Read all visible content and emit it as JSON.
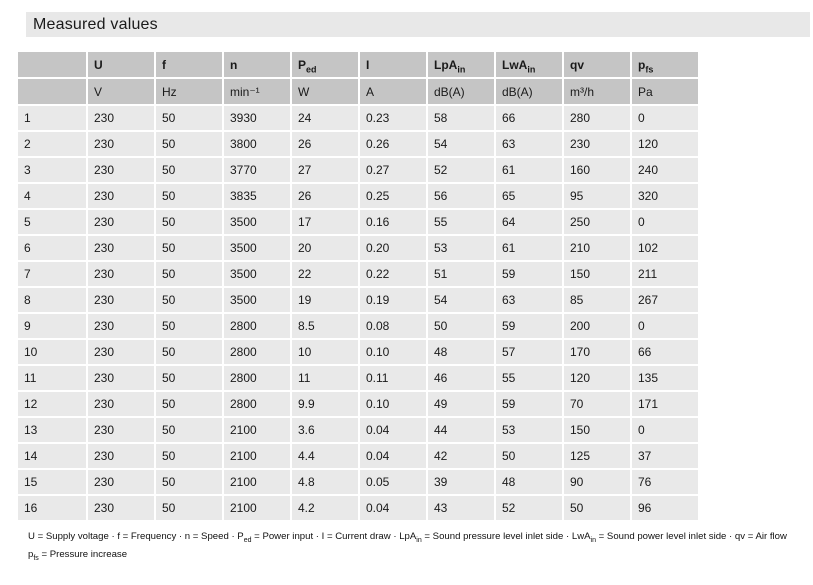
{
  "title": "Measured values",
  "table": {
    "columns": [
      {
        "label": "",
        "sub": "",
        "unit": ""
      },
      {
        "label": "U",
        "sub": "",
        "unit": "V"
      },
      {
        "label": "f",
        "sub": "",
        "unit": "Hz"
      },
      {
        "label": "n",
        "sub": "",
        "unit": "min⁻¹"
      },
      {
        "label": "P",
        "sub": "ed",
        "unit": "W"
      },
      {
        "label": "I",
        "sub": "",
        "unit": "A"
      },
      {
        "label": "LpA",
        "sub": "in",
        "unit": "dB(A)"
      },
      {
        "label": "LwA",
        "sub": "in",
        "unit": "dB(A)"
      },
      {
        "label": "qv",
        "sub": "",
        "unit": "m³/h"
      },
      {
        "label": "p",
        "sub": "fs",
        "unit": "Pa"
      }
    ],
    "rows": [
      {
        "no": "1",
        "values": [
          "230",
          "50",
          "3930",
          "24",
          "0.23",
          "58",
          "66",
          "280",
          "0"
        ]
      },
      {
        "no": "2",
        "values": [
          "230",
          "50",
          "3800",
          "26",
          "0.26",
          "54",
          "63",
          "230",
          "120"
        ]
      },
      {
        "no": "3",
        "values": [
          "230",
          "50",
          "3770",
          "27",
          "0.27",
          "52",
          "61",
          "160",
          "240"
        ]
      },
      {
        "no": "4",
        "values": [
          "230",
          "50",
          "3835",
          "26",
          "0.25",
          "56",
          "65",
          "95",
          "320"
        ]
      },
      {
        "no": "5",
        "values": [
          "230",
          "50",
          "3500",
          "17",
          "0.16",
          "55",
          "64",
          "250",
          "0"
        ]
      },
      {
        "no": "6",
        "values": [
          "230",
          "50",
          "3500",
          "20",
          "0.20",
          "53",
          "61",
          "210",
          "102"
        ]
      },
      {
        "no": "7",
        "values": [
          "230",
          "50",
          "3500",
          "22",
          "0.22",
          "51",
          "59",
          "150",
          "211"
        ]
      },
      {
        "no": "8",
        "values": [
          "230",
          "50",
          "3500",
          "19",
          "0.19",
          "54",
          "63",
          "85",
          "267"
        ]
      },
      {
        "no": "9",
        "values": [
          "230",
          "50",
          "2800",
          "8.5",
          "0.08",
          "50",
          "59",
          "200",
          "0"
        ]
      },
      {
        "no": "10",
        "values": [
          "230",
          "50",
          "2800",
          "10",
          "0.10",
          "48",
          "57",
          "170",
          "66"
        ]
      },
      {
        "no": "11",
        "values": [
          "230",
          "50",
          "2800",
          "11",
          "0.11",
          "46",
          "55",
          "120",
          "135"
        ]
      },
      {
        "no": "12",
        "values": [
          "230",
          "50",
          "2800",
          "9.9",
          "0.10",
          "49",
          "59",
          "70",
          "171"
        ]
      },
      {
        "no": "13",
        "values": [
          "230",
          "50",
          "2100",
          "3.6",
          "0.04",
          "44",
          "53",
          "150",
          "0"
        ]
      },
      {
        "no": "14",
        "values": [
          "230",
          "50",
          "2100",
          "4.4",
          "0.04",
          "42",
          "50",
          "125",
          "37"
        ]
      },
      {
        "no": "15",
        "values": [
          "230",
          "50",
          "2100",
          "4.8",
          "0.05",
          "39",
          "48",
          "90",
          "76"
        ]
      },
      {
        "no": "16",
        "values": [
          "230",
          "50",
          "2100",
          "4.2",
          "0.04",
          "43",
          "52",
          "50",
          "96"
        ]
      }
    ]
  },
  "footer": {
    "line1_segments": [
      {
        "text": "U = Supply voltage · f = Frequency · n = Speed · P"
      },
      {
        "sub": "ed"
      },
      {
        "text": " = Power input · I = Current draw · LpA"
      },
      {
        "sub": "in"
      },
      {
        "text": " = Sound pressure level inlet side · LwA"
      },
      {
        "sub": "in"
      },
      {
        "text": " = Sound power level inlet side · qv = Air flow"
      }
    ],
    "line2_segments": [
      {
        "text": "p"
      },
      {
        "sub": "fs"
      },
      {
        "text": " = Pressure increase"
      }
    ]
  },
  "colors": {
    "title_bar_bg": "#e8e8e8",
    "header_bg": "#c5c5c5",
    "row_bg": "#e9e9e9",
    "text": "#1a1a1a"
  }
}
